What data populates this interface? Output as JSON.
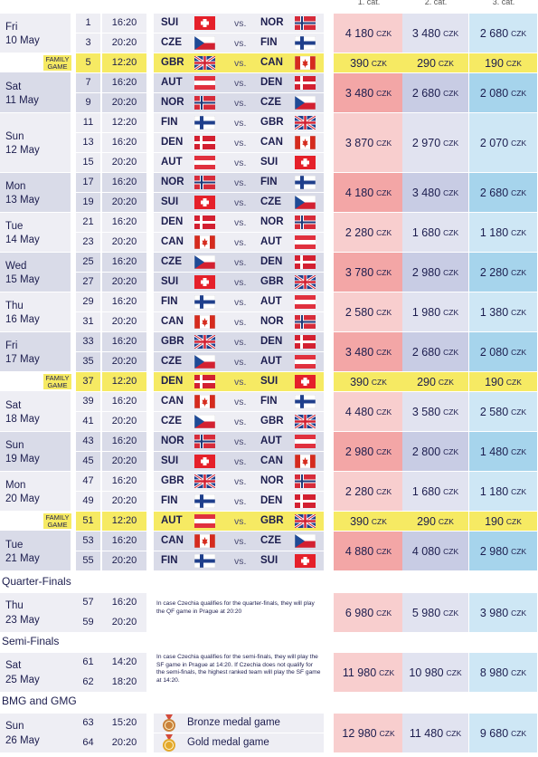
{
  "headers": [
    "1. cat.",
    "2. cat.",
    "3. cat."
  ],
  "colors": {
    "cat1": "#f3a6a6",
    "cat2": "#c8cce4",
    "cat3": "#a6d4ec",
    "family": "#f6ea63"
  },
  "currency": "CZK",
  "family_label": "FAMILY\nGAME",
  "vs": "vs.",
  "days": [
    {
      "day": "Fri",
      "date": "10 May",
      "family": false,
      "games": [
        {
          "no": "1",
          "time": "16:20",
          "home": "SUI",
          "away": "NOR"
        },
        {
          "no": "3",
          "time": "20:20",
          "home": "CZE",
          "away": "FIN"
        }
      ],
      "prices": [
        "4 180",
        "3 480",
        "2 680"
      ]
    },
    {
      "day": "Sat",
      "date": "11 May",
      "family": true,
      "games": [
        {
          "no": "5",
          "time": "12:20",
          "home": "GBR",
          "away": "CAN",
          "family": true,
          "prices": [
            "390",
            "290",
            "190"
          ]
        },
        {
          "no": "7",
          "time": "16:20",
          "home": "AUT",
          "away": "DEN"
        },
        {
          "no": "9",
          "time": "20:20",
          "home": "NOR",
          "away": "CZE"
        }
      ],
      "prices": [
        "3 480",
        "2 680",
        "2 080"
      ]
    },
    {
      "day": "Sun",
      "date": "12 May",
      "family": false,
      "games": [
        {
          "no": "11",
          "time": "12:20",
          "home": "FIN",
          "away": "GBR"
        },
        {
          "no": "13",
          "time": "16:20",
          "home": "DEN",
          "away": "CAN"
        },
        {
          "no": "15",
          "time": "20:20",
          "home": "AUT",
          "away": "SUI"
        }
      ],
      "prices": [
        "3 870",
        "2 970",
        "2 070"
      ]
    },
    {
      "day": "Mon",
      "date": "13 May",
      "family": false,
      "games": [
        {
          "no": "17",
          "time": "16:20",
          "home": "NOR",
          "away": "FIN"
        },
        {
          "no": "19",
          "time": "20:20",
          "home": "SUI",
          "away": "CZE"
        }
      ],
      "prices": [
        "4 180",
        "3 480",
        "2 680"
      ]
    },
    {
      "day": "Tue",
      "date": "14 May",
      "family": false,
      "games": [
        {
          "no": "21",
          "time": "16:20",
          "home": "DEN",
          "away": "NOR"
        },
        {
          "no": "23",
          "time": "20:20",
          "home": "CAN",
          "away": "AUT"
        }
      ],
      "prices": [
        "2 280",
        "1 680",
        "1 180"
      ]
    },
    {
      "day": "Wed",
      "date": "15 May",
      "family": false,
      "games": [
        {
          "no": "25",
          "time": "16:20",
          "home": "CZE",
          "away": "DEN"
        },
        {
          "no": "27",
          "time": "20:20",
          "home": "SUI",
          "away": "GBR"
        }
      ],
      "prices": [
        "3 780",
        "2 980",
        "2 280"
      ]
    },
    {
      "day": "Thu",
      "date": "16 May",
      "family": false,
      "games": [
        {
          "no": "29",
          "time": "16:20",
          "home": "FIN",
          "away": "AUT"
        },
        {
          "no": "31",
          "time": "20:20",
          "home": "CAN",
          "away": "NOR"
        }
      ],
      "prices": [
        "2 580",
        "1 980",
        "1 380"
      ]
    },
    {
      "day": "Fri",
      "date": "17 May",
      "family": false,
      "games": [
        {
          "no": "33",
          "time": "16:20",
          "home": "GBR",
          "away": "DEN"
        },
        {
          "no": "35",
          "time": "20:20",
          "home": "CZE",
          "away": "AUT"
        }
      ],
      "prices": [
        "3 480",
        "2 680",
        "2 080"
      ]
    },
    {
      "day": "Sat",
      "date": "18 May",
      "family": true,
      "games": [
        {
          "no": "37",
          "time": "12:20",
          "home": "DEN",
          "away": "SUI",
          "family": true,
          "prices": [
            "390",
            "290",
            "190"
          ]
        },
        {
          "no": "39",
          "time": "16:20",
          "home": "CAN",
          "away": "FIN"
        },
        {
          "no": "41",
          "time": "20:20",
          "home": "CZE",
          "away": "GBR"
        }
      ],
      "prices": [
        "4 480",
        "3 580",
        "2 580"
      ]
    },
    {
      "day": "Sun",
      "date": "19 May",
      "family": false,
      "games": [
        {
          "no": "43",
          "time": "16:20",
          "home": "NOR",
          "away": "AUT"
        },
        {
          "no": "45",
          "time": "20:20",
          "home": "SUI",
          "away": "CAN"
        }
      ],
      "prices": [
        "2 980",
        "2 800",
        "1 480"
      ]
    },
    {
      "day": "Mon",
      "date": "20 May",
      "family": false,
      "games": [
        {
          "no": "47",
          "time": "16:20",
          "home": "GBR",
          "away": "NOR"
        },
        {
          "no": "49",
          "time": "20:20",
          "home": "FIN",
          "away": "DEN"
        }
      ],
      "prices": [
        "2 280",
        "1 680",
        "1 180"
      ]
    },
    {
      "day": "Tue",
      "date": "21 May",
      "family": true,
      "games": [
        {
          "no": "51",
          "time": "12:20",
          "home": "AUT",
          "away": "GBR",
          "family": true,
          "prices": [
            "390",
            "290",
            "190"
          ]
        },
        {
          "no": "53",
          "time": "16:20",
          "home": "CAN",
          "away": "CZE"
        },
        {
          "no": "55",
          "time": "20:20",
          "home": "FIN",
          "away": "SUI"
        }
      ],
      "prices": [
        "4 880",
        "4 080",
        "2 980"
      ]
    }
  ],
  "quarter": {
    "title": "Quarter-Finals",
    "day": "Thu",
    "date": "23 May",
    "games": [
      {
        "no": "57",
        "time": "16:20"
      },
      {
        "no": "59",
        "time": "20:20"
      }
    ],
    "note": "In case Czechia qualifies for the quarter-finals, they will play the QF game in Prague at 20:20",
    "prices": [
      "6 980",
      "5 980",
      "3 980"
    ]
  },
  "semi": {
    "title": "Semi-Finals",
    "day": "Sat",
    "date": "25 May",
    "games": [
      {
        "no": "61",
        "time": "14:20"
      },
      {
        "no": "62",
        "time": "18:20"
      }
    ],
    "note": "In case Czechia qualifies for the semi-finals, they will play the SF game in Prague at 14:20. If Czechia does not qualify for the semi-finals, the highest ranked team will play the SF game at 14:20.",
    "prices": [
      "11 980",
      "10 980",
      "8 980"
    ]
  },
  "medal": {
    "title": "BMG and GMG",
    "day": "Sun",
    "date": "26 May",
    "games": [
      {
        "no": "63",
        "time": "15:20",
        "label": "Bronze medal game",
        "medal": "bronze-medal"
      },
      {
        "no": "64",
        "time": "20:20",
        "label": "Gold medal game",
        "medal": "gold-medal"
      }
    ],
    "prices": [
      "12 980",
      "11 480",
      "9 680"
    ]
  }
}
